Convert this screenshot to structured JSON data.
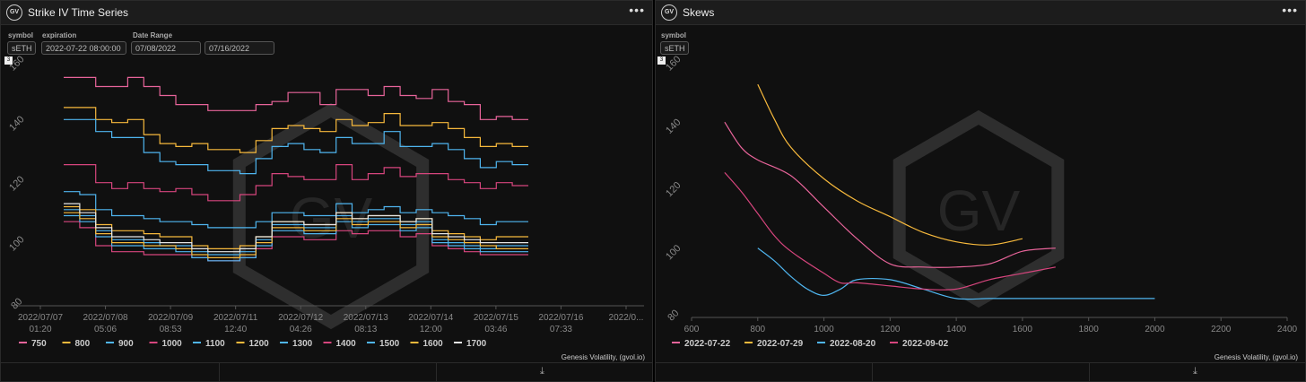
{
  "left_panel": {
    "title": "Strike IV Time Series",
    "logo": "GV",
    "menu": "•••",
    "filters": {
      "symbol_label": "symbol",
      "symbol_value": "sETH",
      "expiration_label": "expiration",
      "expiration_value": "2022-07-22 08:00:00",
      "date_range_label": "Date Range",
      "date_from": "07/08/2022",
      "date_to": "07/16/2022"
    },
    "mini_badge": "3",
    "credit": "Genesis Volatility, (gvol.io)"
  },
  "right_panel": {
    "title": "Skews",
    "logo": "GV",
    "menu": "•••",
    "filters": {
      "symbol_label": "symbol",
      "symbol_value": "sETH"
    },
    "mini_badge": "3",
    "credit": "Genesis Volatility, (gvol.io)"
  },
  "watermark": "GV",
  "icons": {
    "download": "download-icon",
    "menu": "more-horizontal-icon",
    "logo": "gv-logo-icon"
  },
  "chart_data": [
    {
      "type": "line",
      "title": "Strike IV Time Series",
      "ylim": [
        80,
        160
      ],
      "yticks": [
        "80",
        "100",
        "120",
        "140",
        "160"
      ],
      "xticks": [
        [
          "2022/07/07",
          "01:20"
        ],
        [
          "2022/07/08",
          "05:06"
        ],
        [
          "2022/07/09",
          "08:53"
        ],
        [
          "2022/07/11",
          "12:40"
        ],
        [
          "2022/07/12",
          "04:26"
        ],
        [
          "2022/07/13",
          "08:13"
        ],
        [
          "2022/07/14",
          "12:00"
        ],
        [
          "2022/07/15",
          "03:46"
        ],
        [
          "2022/07/16",
          "07:33"
        ],
        [
          "2022/0...",
          ""
        ]
      ],
      "legend_placement": "bottom",
      "series": [
        {
          "name": "750",
          "color": "#e8649a",
          "values": [
            156,
            156,
            153,
            153,
            156,
            153,
            150,
            147,
            147,
            145,
            145,
            145,
            147,
            148,
            151,
            151,
            147,
            152,
            152,
            150,
            153,
            150,
            149,
            152,
            148,
            147,
            142,
            143,
            142
          ]
        },
        {
          "name": "800",
          "color": "#f7b93c",
          "values": [
            146,
            146,
            142,
            141,
            142,
            137,
            134,
            133,
            134,
            132,
            132,
            131,
            135,
            139,
            140,
            139,
            138,
            142,
            140,
            141,
            144,
            140,
            140,
            141,
            139,
            136,
            133,
            134,
            133
          ]
        },
        {
          "name": "900",
          "color": "#4fb5ef",
          "values": [
            142,
            142,
            138,
            136,
            136,
            131,
            128,
            127,
            127,
            125,
            125,
            124,
            129,
            133,
            134,
            132,
            131,
            136,
            134,
            134,
            138,
            133,
            133,
            134,
            132,
            129,
            126,
            128,
            127
          ]
        },
        {
          "name": "1000",
          "color": "#d6457d",
          "values": [
            127,
            127,
            121,
            119,
            121,
            119,
            118,
            119,
            117,
            115,
            115,
            117,
            120,
            124,
            123,
            122,
            122,
            127,
            122,
            124,
            126,
            123,
            124,
            124,
            122,
            121,
            119,
            121,
            120
          ]
        },
        {
          "name": "1100",
          "color": "#4fb5ef",
          "values": [
            118,
            117,
            112,
            110,
            110,
            109,
            108,
            108,
            107,
            106,
            106,
            106,
            108,
            111,
            111,
            110,
            110,
            114,
            111,
            112,
            113,
            111,
            112,
            111,
            110,
            109,
            107,
            108,
            108
          ]
        },
        {
          "name": "1200",
          "color": "#f7b93c",
          "values": [
            113,
            112,
            107,
            105,
            105,
            104,
            103,
            103,
            100,
            99,
            99,
            100,
            103,
            108,
            108,
            107,
            107,
            111,
            109,
            110,
            110,
            108,
            109,
            105,
            104,
            103,
            102,
            103,
            103
          ]
        },
        {
          "name": "1300",
          "color": "#4fb5ef",
          "values": [
            112,
            110,
            105,
            102,
            102,
            101,
            100,
            100,
            98,
            97,
            97,
            98,
            102,
            107,
            107,
            106,
            106,
            110,
            108,
            109,
            109,
            107,
            108,
            102,
            101,
            100,
            99,
            100,
            100
          ]
        },
        {
          "name": "1400",
          "color": "#d6457d",
          "values": [
            108,
            106,
            100,
            98,
            98,
            97,
            97,
            97,
            96,
            95,
            95,
            96,
            99,
            103,
            103,
            102,
            102,
            105,
            104,
            105,
            105,
            103,
            104,
            100,
            99,
            98,
            97,
            97,
            97
          ]
        },
        {
          "name": "1500",
          "color": "#4fb5ef",
          "values": [
            110,
            108,
            103,
            100,
            100,
            99,
            99,
            98,
            96,
            95,
            95,
            96,
            100,
            105,
            105,
            104,
            104,
            108,
            106,
            107,
            107,
            105,
            106,
            101,
            100,
            99,
            98,
            98,
            98
          ]
        },
        {
          "name": "1600",
          "color": "#f7b93c",
          "values": [
            111,
            109,
            104,
            101,
            101,
            100,
            100,
            99,
            97,
            96,
            96,
            97,
            101,
            106,
            106,
            105,
            105,
            109,
            107,
            108,
            108,
            106,
            107,
            103,
            102,
            101,
            100,
            99,
            99
          ]
        },
        {
          "name": "1700",
          "color": "#e6e6e6",
          "values": [
            114,
            111,
            106,
            103,
            103,
            102,
            101,
            101,
            99,
            98,
            98,
            99,
            103,
            108,
            108,
            107,
            107,
            111,
            109,
            110,
            110,
            108,
            109,
            104,
            103,
            102,
            101,
            101,
            101
          ]
        }
      ]
    },
    {
      "type": "line",
      "title": "Skews",
      "xlim": [
        600,
        2400
      ],
      "ylim": [
        80,
        160
      ],
      "xticks": [
        "600",
        "800",
        "1000",
        "1200",
        "1400",
        "1600",
        "1800",
        "2000",
        "2200",
        "2400"
      ],
      "yticks": [
        "80",
        "100",
        "120",
        "140",
        "160"
      ],
      "legend_placement": "bottom",
      "series": [
        {
          "name": "2022-07-22",
          "color": "#e8649a",
          "points": [
            [
              700,
              142
            ],
            [
              750,
              134
            ],
            [
              800,
              130
            ],
            [
              900,
              125
            ],
            [
              1000,
              115
            ],
            [
              1100,
              105
            ],
            [
              1200,
              97
            ],
            [
              1300,
              96
            ],
            [
              1400,
              96
            ],
            [
              1500,
              97
            ],
            [
              1600,
              101
            ],
            [
              1700,
              102
            ]
          ]
        },
        {
          "name": "2022-07-29",
          "color": "#f7b93c",
          "points": [
            [
              800,
              154
            ],
            [
              850,
              143
            ],
            [
              900,
              134
            ],
            [
              1000,
              124
            ],
            [
              1100,
              117
            ],
            [
              1200,
              112
            ],
            [
              1300,
              107
            ],
            [
              1400,
              104
            ],
            [
              1500,
              103
            ],
            [
              1600,
              105
            ]
          ]
        },
        {
          "name": "2022-08-20",
          "color": "#4fb5ef",
          "points": [
            [
              800,
              102
            ],
            [
              850,
              98
            ],
            [
              900,
              93
            ],
            [
              950,
              89
            ],
            [
              1000,
              87
            ],
            [
              1050,
              89
            ],
            [
              1100,
              92
            ],
            [
              1200,
              92
            ],
            [
              1300,
              89
            ],
            [
              1400,
              86
            ],
            [
              1500,
              86
            ],
            [
              1600,
              86
            ],
            [
              1800,
              86
            ],
            [
              2000,
              86
            ]
          ]
        },
        {
          "name": "2022-09-02",
          "color": "#d6457d",
          "points": [
            [
              700,
              126
            ],
            [
              750,
              120
            ],
            [
              800,
              113
            ],
            [
              850,
              106
            ],
            [
              900,
              101
            ],
            [
              1000,
              94
            ],
            [
              1050,
              91
            ],
            [
              1100,
              91
            ],
            [
              1200,
              90
            ],
            [
              1300,
              89
            ],
            [
              1400,
              89
            ],
            [
              1500,
              92
            ],
            [
              1600,
              94
            ],
            [
              1700,
              96
            ]
          ]
        }
      ]
    }
  ]
}
